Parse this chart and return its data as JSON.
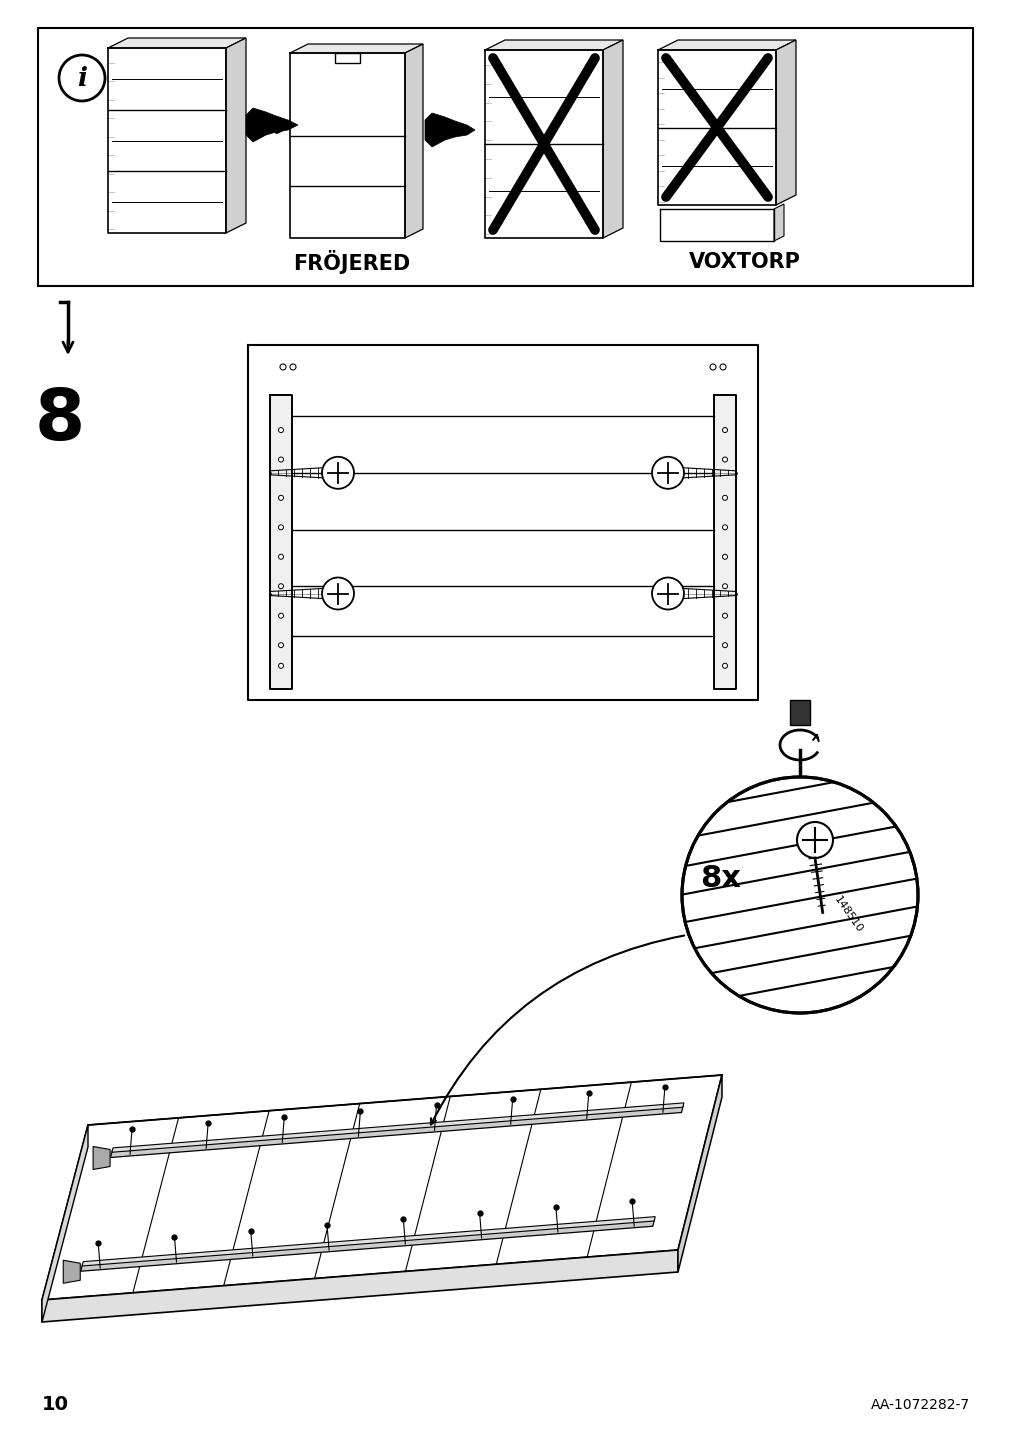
{
  "bg_color": "#ffffff",
  "page_number": "10",
  "article_number": "AA-1072282-7",
  "step_number": "8",
  "label_frojered": "FRÖJERED",
  "label_voxtorp": "VOXTORP",
  "screw_count": "8x",
  "screw_part": "148510"
}
